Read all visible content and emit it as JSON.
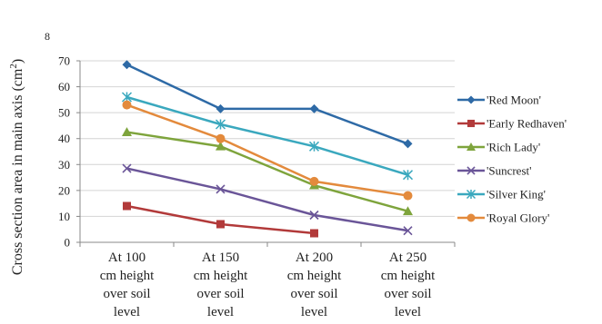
{
  "chart_data": {
    "type": "line",
    "ylabel": "Cross section area in main axis (cm",
    "ylabel_sup": "2",
    "ylabel_close": ")",
    "top_truncated_tick": "8",
    "ylim": [
      0,
      70
    ],
    "yticks": [
      0,
      10,
      20,
      30,
      40,
      50,
      60,
      70
    ],
    "grid": "horizontal",
    "legend_position": "right",
    "categories": [
      [
        "At 100",
        "cm height",
        "over soil",
        "level"
      ],
      [
        "At 150",
        "cm height",
        "over soil",
        "level"
      ],
      [
        "At 200",
        "cm height",
        "over soil",
        "level"
      ],
      [
        "At 250",
        "cm height",
        "over soil",
        "level"
      ]
    ],
    "series": [
      {
        "name": "'Red Moon'",
        "color": "#2e6aa6",
        "marker": "diamond",
        "values": [
          68.5,
          51.5,
          51.5,
          38
        ]
      },
      {
        "name": "'Early Redhaven'",
        "color": "#b23a3a",
        "marker": "square",
        "values": [
          14,
          7,
          3.5,
          null
        ]
      },
      {
        "name": "'Rich Lady'",
        "color": "#7ea43c",
        "marker": "triangle",
        "values": [
          42.5,
          37,
          22,
          12
        ]
      },
      {
        "name": "'Suncrest'",
        "color": "#6a5598",
        "marker": "x",
        "values": [
          28.5,
          20.5,
          10.5,
          4.5
        ]
      },
      {
        "name": "'Silver King'",
        "color": "#3aa8be",
        "marker": "star",
        "values": [
          56,
          45.5,
          37,
          26
        ]
      },
      {
        "name": "'Royal Glory'",
        "color": "#e38a3c",
        "marker": "circle",
        "values": [
          53,
          40,
          23.5,
          18
        ]
      }
    ]
  }
}
